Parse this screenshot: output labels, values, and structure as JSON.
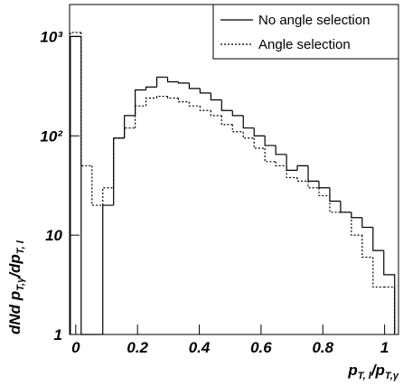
{
  "chart_data": {
    "type": "histogram",
    "x_label": [
      "p",
      "T, l",
      "/p",
      "T,γ"
    ],
    "y_label": [
      "dNd p",
      "T,γ",
      "/dp",
      "T, l"
    ],
    "bins": [
      -0.0175,
      0.0175,
      0.0525,
      0.0875,
      0.1225,
      0.1575,
      0.1925,
      0.2275,
      0.2625,
      0.2975,
      0.3325,
      0.3675,
      0.4025,
      0.4375,
      0.4725,
      0.5075,
      0.5425,
      0.5775,
      0.6125,
      0.6475,
      0.6825,
      0.7175,
      0.7525,
      0.7875,
      0.8225,
      0.8575,
      0.8925,
      0.9275,
      0.9625,
      0.9975,
      1.0325
    ],
    "series": [
      {
        "name": "No angle selection",
        "color": "#000000",
        "dash": "solid",
        "values": [
          1000,
          1,
          1,
          20,
          95,
          160,
          290,
          310,
          390,
          350,
          340,
          300,
          270,
          230,
          180,
          160,
          120,
          100,
          80,
          65,
          45,
          50,
          35,
          30,
          22,
          17,
          15,
          12,
          7,
          4
        ]
      },
      {
        "name": "Angle selection",
        "color": "#000000",
        "dash": "dotted",
        "values": [
          1100,
          50,
          20,
          30,
          95,
          120,
          200,
          240,
          250,
          240,
          220,
          200,
          180,
          160,
          130,
          110,
          95,
          75,
          55,
          50,
          38,
          35,
          30,
          25,
          17,
          17,
          10,
          6,
          3,
          3
        ]
      }
    ],
    "xlim": [
      -0.02,
      1.045
    ],
    "ylim": [
      1,
      2100
    ],
    "xticks": [
      0,
      0.2,
      0.4,
      0.6,
      0.8,
      1
    ],
    "yticks": [
      1,
      10,
      {
        "value": 100,
        "label": "10²"
      },
      {
        "value": 1000,
        "label": "10³"
      }
    ],
    "log_y": true,
    "legend": "upper right"
  }
}
